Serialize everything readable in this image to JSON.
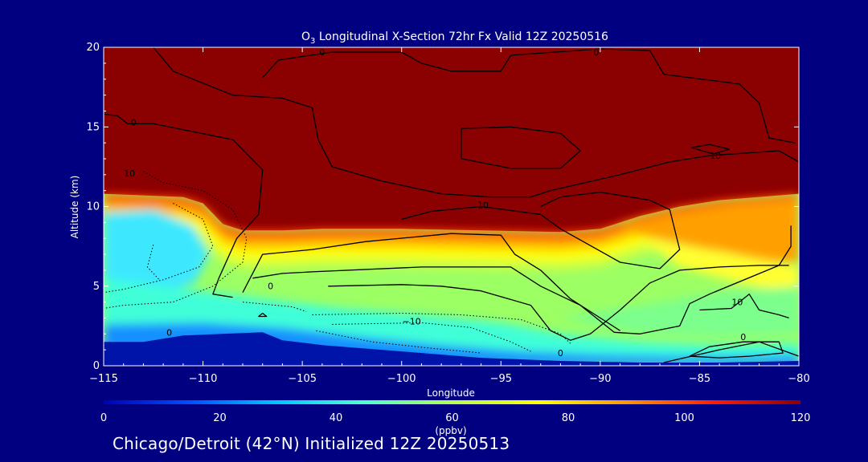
{
  "chart_data": {
    "type": "heatmap",
    "title_main": "O",
    "title_sub": "3",
    "title_rest": " Longitudinal X-Section 72hr  Fx Valid 12Z 20250516",
    "xlabel": "Longitude",
    "ylabel": "Altitude (km)",
    "xlim": [
      -115,
      -80
    ],
    "ylim": [
      0,
      20
    ],
    "x_ticks": [
      -115,
      -110,
      -105,
      -100,
      -95,
      -90,
      -85,
      -80
    ],
    "x_tick_labels": [
      "−115",
      "−110",
      "−105",
      "−100",
      "−95",
      "−90",
      "−85",
      "−80"
    ],
    "y_ticks": [
      0,
      5,
      10,
      15,
      20
    ],
    "y_tick_labels": [
      "0",
      "5",
      "10",
      "15",
      "20"
    ],
    "colorbar": {
      "min": 0,
      "max": 120,
      "ticks": [
        0,
        20,
        40,
        60,
        80,
        100,
        120
      ],
      "tick_labels": [
        "0",
        "20",
        "40",
        "60",
        "80",
        "100",
        "120"
      ],
      "unit": "(ppbv)",
      "colors": [
        "#0000b4",
        "#0050ff",
        "#00c8ff",
        "#50ffd0",
        "#b4ff50",
        "#ffff00",
        "#ff9600",
        "#ff1e00",
        "#8b0000"
      ]
    },
    "tropopause_height_km": [
      [
        -115,
        10.8
      ],
      [
        -113,
        10.7
      ],
      [
        -111,
        10.6
      ],
      [
        -110,
        10.2
      ],
      [
        -109,
        8.9
      ],
      [
        -108,
        8.5
      ],
      [
        -106,
        8.5
      ],
      [
        -104,
        8.6
      ],
      [
        -100,
        8.6
      ],
      [
        -96,
        8.5
      ],
      [
        -92,
        8.4
      ],
      [
        -90,
        8.6
      ],
      [
        -88,
        9.4
      ],
      [
        -86,
        10.0
      ],
      [
        -84,
        10.4
      ],
      [
        -82,
        10.6
      ],
      [
        -80,
        10.8
      ]
    ],
    "surface_height_km": [
      [
        -115,
        1.5
      ],
      [
        -113,
        1.5
      ],
      [
        -111,
        1.9
      ],
      [
        -109,
        2.0
      ],
      [
        -107,
        2.1
      ],
      [
        -106,
        1.6
      ],
      [
        -104,
        1.3
      ],
      [
        -100,
        0.9
      ],
      [
        -96,
        0.5
      ],
      [
        -92,
        0.3
      ],
      [
        -88,
        0.2
      ],
      [
        -84,
        0.2
      ],
      [
        -80,
        0.3
      ]
    ],
    "contour_labels": [
      {
        "text": "0",
        "x": -113.5,
        "y": 15.1
      },
      {
        "text": "10",
        "x": -113.7,
        "y": 11.9
      },
      {
        "text": "0",
        "x": -104.0,
        "y": 19.5
      },
      {
        "text": "0",
        "x": -90.2,
        "y": 19.5
      },
      {
        "text": "10",
        "x": -95.9,
        "y": 9.9
      },
      {
        "text": "10",
        "x": -84.2,
        "y": 13.0
      },
      {
        "text": "0",
        "x": -106.6,
        "y": 4.8
      },
      {
        "text": "−10",
        "x": -99.5,
        "y": 2.6
      },
      {
        "text": "0",
        "x": -111.7,
        "y": 1.9
      },
      {
        "text": "0",
        "x": -92.0,
        "y": 0.6
      },
      {
        "text": "0",
        "x": -82.8,
        "y": 1.6
      },
      {
        "text": "10",
        "x": -83.1,
        "y": 3.8
      }
    ],
    "contours_solid": [
      [
        [
          -112.5,
          20
        ],
        [
          -111.5,
          18.5
        ],
        [
          -108.5,
          17.0
        ],
        [
          -106.0,
          16.8
        ],
        [
          -104.5,
          16.2
        ],
        [
          -104.2,
          14.2
        ],
        [
          -103.5,
          12.5
        ],
        [
          -101.0,
          11.6
        ],
        [
          -98.0,
          10.8
        ],
        [
          -95.5,
          10.6
        ],
        [
          -93.5,
          10.6
        ],
        [
          -92.5,
          11.0
        ],
        [
          -89.0,
          12.0
        ],
        [
          -86.5,
          12.8
        ],
        [
          -84.5,
          13.2
        ],
        [
          -81.0,
          13.5
        ],
        [
          -80,
          12.8
        ]
      ],
      [
        [
          -107,
          18.1
        ],
        [
          -106.2,
          19.2
        ],
        [
          -103.5,
          19.7
        ],
        [
          -100,
          19.7
        ],
        [
          -99.0,
          19.0
        ],
        [
          -97.5,
          18.5
        ],
        [
          -95,
          18.5
        ],
        [
          -94.5,
          19.5
        ],
        [
          -90,
          19.9
        ],
        [
          -87.5,
          19.8
        ],
        [
          -86.8,
          18.3
        ],
        [
          -83,
          17.7
        ],
        [
          -82.0,
          16.5
        ],
        [
          -81.5,
          14.3
        ],
        [
          -80.2,
          14.0
        ]
      ],
      [
        [
          -115,
          15.8
        ],
        [
          -114.3,
          15.7
        ],
        [
          -113.8,
          15.2
        ],
        [
          -112.5,
          15.2
        ],
        [
          -108.5,
          14.2
        ],
        [
          -107,
          12.3
        ],
        [
          -107.2,
          9.5
        ],
        [
          -108.3,
          8.0
        ],
        [
          -109.2,
          5.5
        ],
        [
          -109.5,
          4.5
        ],
        [
          -108.5,
          4.3
        ]
      ],
      [
        [
          -103.7,
          5.0
        ],
        [
          -100,
          5.1
        ],
        [
          -98,
          5.0
        ],
        [
          -96,
          4.7
        ],
        [
          -93.5,
          3.8
        ],
        [
          -92.5,
          2.2
        ],
        [
          -91.5,
          1.6
        ],
        [
          -90.5,
          2.0
        ],
        [
          -89.0,
          3.5
        ],
        [
          -87.5,
          5.2
        ],
        [
          -86.0,
          6.0
        ],
        [
          -84.0,
          6.2
        ],
        [
          -82.0,
          6.3
        ],
        [
          -80.5,
          6.3
        ]
      ],
      [
        [
          -107.5,
          5.5
        ],
        [
          -106.0,
          5.8
        ],
        [
          -104.5,
          5.9
        ],
        [
          -99.0,
          6.2
        ],
        [
          -97.0,
          6.2
        ],
        [
          -94.5,
          6.2
        ],
        [
          -93.0,
          5.0
        ],
        [
          -91.0,
          3.8
        ],
        [
          -89.3,
          2.1
        ],
        [
          -88.0,
          2.0
        ],
        [
          -86.0,
          2.5
        ],
        [
          -85.5,
          3.9
        ],
        [
          -84.5,
          4.5
        ],
        [
          -81.0,
          6.3
        ],
        [
          -80.4,
          7.5
        ],
        [
          -80.4,
          8.8
        ]
      ],
      [
        [
          -108.0,
          4.6
        ],
        [
          -107.0,
          7.0
        ],
        [
          -104.5,
          7.3
        ],
        [
          -101.8,
          7.8
        ],
        [
          -97.5,
          8.3
        ],
        [
          -95.0,
          8.2
        ],
        [
          -94.3,
          7.0
        ],
        [
          -93.0,
          6.0
        ],
        [
          -91.5,
          4.2
        ],
        [
          -89.0,
          2.2
        ]
      ],
      [
        [
          -100.0,
          9.2
        ],
        [
          -98.5,
          9.7
        ],
        [
          -96.0,
          10.0
        ],
        [
          -93.0,
          9.5
        ],
        [
          -92.0,
          8.6
        ],
        [
          -91.0,
          7.9
        ],
        [
          -89.0,
          6.5
        ],
        [
          -87.0,
          6.1
        ],
        [
          -86.0,
          7.3
        ],
        [
          -86.5,
          9.8
        ],
        [
          -87.5,
          10.4
        ],
        [
          -90.0,
          10.9
        ],
        [
          -92.0,
          10.6
        ],
        [
          -93.0,
          10.0
        ]
      ],
      [
        [
          -85.0,
          3.5
        ],
        [
          -83.4,
          3.6
        ],
        [
          -82.5,
          4.5
        ],
        [
          -82.0,
          3.5
        ],
        [
          -81.0,
          3.2
        ],
        [
          -80.5,
          3.0
        ]
      ],
      [
        [
          -85.5,
          0.6
        ],
        [
          -84.5,
          1.2
        ],
        [
          -82.8,
          1.5
        ],
        [
          -81.0,
          1.5
        ],
        [
          -80.8,
          0.8
        ],
        [
          -82.5,
          0.6
        ],
        [
          -84.0,
          0.5
        ],
        [
          -85.5,
          0.6
        ]
      ],
      [
        [
          -97.0,
          14.9
        ],
        [
          -94.5,
          15.0
        ],
        [
          -92.0,
          14.6
        ],
        [
          -91.0,
          13.5
        ],
        [
          -92.0,
          12.4
        ],
        [
          -94.5,
          12.4
        ],
        [
          -97.0,
          13.0
        ],
        [
          -97.0,
          14.9
        ]
      ],
      [
        [
          -85.4,
          13.7
        ],
        [
          -84.5,
          13.9
        ],
        [
          -83.5,
          13.6
        ],
        [
          -84.3,
          13.3
        ],
        [
          -85.4,
          13.7
        ]
      ],
      [
        [
          -107.0,
          3.3
        ],
        [
          -106.8,
          3.1
        ],
        [
          -107.2,
          3.1
        ],
        [
          -107.0,
          3.3
        ]
      ],
      [
        [
          -86.8,
          0.2
        ],
        [
          -84.0,
          1.0
        ],
        [
          -82.0,
          1.5
        ],
        [
          -80.0,
          0.6
        ]
      ]
    ],
    "contours_dotted": [
      [
        [
          -113.0,
          12.2
        ],
        [
          -112.0,
          11.5
        ],
        [
          -110.0,
          11.0
        ],
        [
          -108.5,
          9.8
        ],
        [
          -107.8,
          8.0
        ],
        [
          -108.0,
          6.5
        ],
        [
          -109.5,
          5.0
        ],
        [
          -111.5,
          4.0
        ],
        [
          -114.0,
          3.8
        ],
        [
          -115,
          3.6
        ]
      ],
      [
        [
          -111.5,
          10.2
        ],
        [
          -110.0,
          9.2
        ],
        [
          -109.5,
          7.5
        ],
        [
          -110.2,
          6.2
        ],
        [
          -112.0,
          5.4
        ],
        [
          -114.0,
          4.8
        ],
        [
          -115,
          4.6
        ]
      ],
      [
        [
          -112.5,
          7.6
        ],
        [
          -112.8,
          6.2
        ],
        [
          -112.2,
          5.4
        ]
      ],
      [
        [
          -104.5,
          3.2
        ],
        [
          -100.0,
          3.3
        ],
        [
          -97.0,
          3.2
        ],
        [
          -94.0,
          2.9
        ],
        [
          -92.0,
          2.0
        ],
        [
          -91.5,
          1.4
        ]
      ],
      [
        [
          -103.5,
          2.6
        ],
        [
          -99.0,
          2.7
        ],
        [
          -96.5,
          2.4
        ],
        [
          -94.5,
          1.5
        ],
        [
          -93.5,
          0.9
        ]
      ],
      [
        [
          -104.3,
          2.2
        ],
        [
          -101.5,
          1.5
        ],
        [
          -98.5,
          1.1
        ],
        [
          -96.0,
          0.8
        ]
      ],
      [
        [
          -108.0,
          4.0
        ],
        [
          -105.5,
          3.7
        ],
        [
          -104.8,
          3.4
        ]
      ]
    ]
  },
  "footer_text": "Chicago/Detroit (42°N) Initialized 12Z 20250513"
}
